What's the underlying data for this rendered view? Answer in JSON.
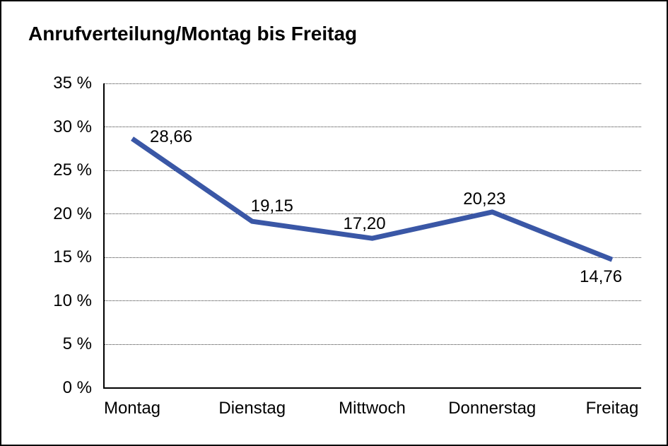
{
  "title": "Anrufverteilung/Montag bis Freitag",
  "colors": {
    "line": "#3A57A6",
    "axis": "#000000",
    "grid": "#3a3a3a",
    "background": "#ffffff",
    "frame_border": "#000000",
    "text": "#000000"
  },
  "chart_data": {
    "type": "line",
    "title": "Anrufverteilung/Montag bis Freitag",
    "categories": [
      "Montag",
      "Dienstag",
      "Mittwoch",
      "Donnerstag",
      "Freitag"
    ],
    "values": [
      28.66,
      19.15,
      17.2,
      20.23,
      14.76
    ],
    "point_labels": [
      "28,66",
      "19,15",
      "17,20",
      "20,23",
      "14,76"
    ],
    "y_ticks": [
      0,
      5,
      10,
      15,
      20,
      25,
      30,
      35
    ],
    "y_tick_labels": [
      "0 %",
      "5 %",
      "10 %",
      "15 %",
      "20 %",
      "25 %",
      "30 %",
      "35 %"
    ],
    "xlabel": "",
    "ylabel": "",
    "ylim": [
      0,
      35
    ],
    "grid": "horizontal-dotted",
    "legend": "none",
    "line_color": "#3A57A6"
  }
}
